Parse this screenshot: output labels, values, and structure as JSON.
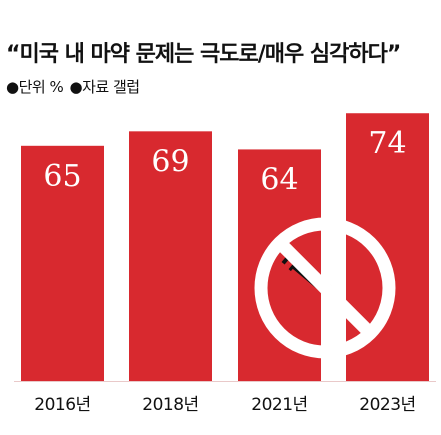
{
  "title": "“미국 내 마약 문제는 극도로/매우 심각하다”",
  "meta": {
    "unit": "●단위 %",
    "source": "●자료 갤럽"
  },
  "colors": {
    "bar": "#d8292f",
    "bar_label": "#ffffff",
    "tick_label": "#111111",
    "baseline": "#e9c9c9"
  },
  "icon": {
    "name": "no-drugs-icon",
    "ring": "#ffffff",
    "syringe": "#111111"
  },
  "chart_data": {
    "type": "bar",
    "categories": [
      "2016년",
      "2018년",
      "2021년",
      "2023년"
    ],
    "values": [
      65,
      69,
      64,
      74
    ],
    "title": "“미국 내 마약 문제는 극도로/매우 심각하다”",
    "xlabel": "",
    "ylabel": "",
    "unit": "%",
    "ylim": [
      0,
      76
    ],
    "data_labels": true,
    "legend": "none",
    "grid": false
  }
}
